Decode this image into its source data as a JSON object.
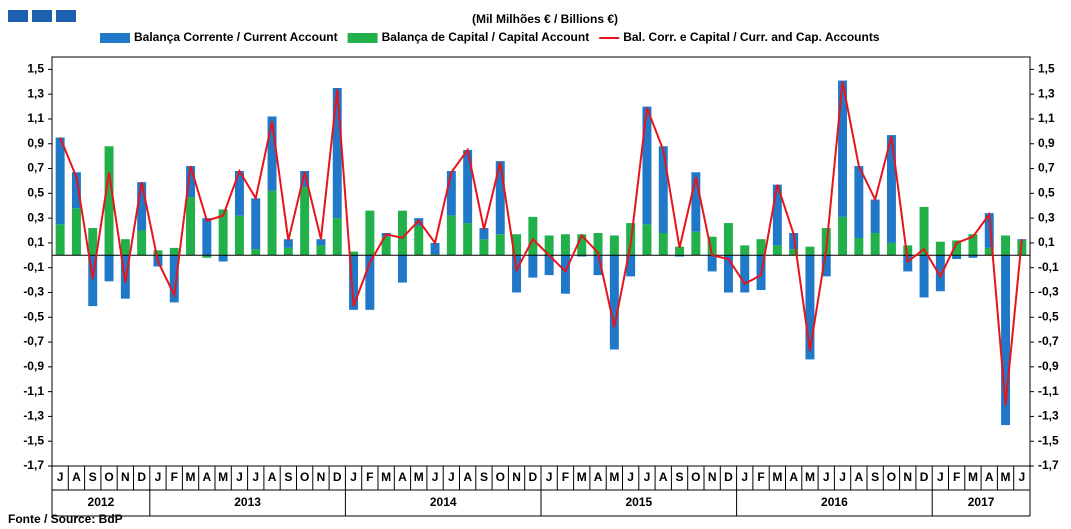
{
  "chart_data": {
    "type": "stacked-bar-line",
    "subtitle": "(Mil Milhões € / Billions €)",
    "source": "Fonte / Source: BdP",
    "categories": [
      "J",
      "A",
      "S",
      "O",
      "N",
      "D",
      "J",
      "F",
      "M",
      "A",
      "M",
      "J",
      "J",
      "A",
      "S",
      "O",
      "N",
      "D",
      "J",
      "F",
      "M",
      "A",
      "M",
      "J",
      "J",
      "A",
      "S",
      "O",
      "N",
      "D",
      "J",
      "F",
      "M",
      "A",
      "M",
      "J",
      "J",
      "A",
      "S",
      "O",
      "N",
      "D",
      "J",
      "F",
      "M",
      "A",
      "M",
      "J",
      "J",
      "A",
      "S",
      "O",
      "N",
      "D",
      "J",
      "F",
      "M",
      "A",
      "M",
      "J"
    ],
    "years": [
      "2012",
      "2013",
      "2014",
      "2015",
      "2016",
      "2017"
    ],
    "series": [
      {
        "name": "Balança Corrente / Current Account",
        "color": "#1f78c8",
        "kind": "bar",
        "values": [
          0.7,
          0.29,
          -0.41,
          -0.21,
          -0.35,
          0.39,
          -0.09,
          -0.38,
          0.25,
          0.3,
          -0.05,
          0.36,
          0.41,
          0.6,
          0.07,
          0.13,
          0.05,
          1.05,
          -0.44,
          -0.44,
          0.03,
          -0.22,
          0.06,
          0.09,
          0.36,
          0.59,
          0.09,
          0.59,
          -0.3,
          -0.18,
          -0.16,
          -0.31,
          -0.01,
          -0.16,
          -0.76,
          -0.17,
          0.95,
          0.7,
          -0.01,
          0.48,
          -0.13,
          -0.3,
          -0.3,
          -0.28,
          0.49,
          0.13,
          -0.84,
          -0.17,
          1.1,
          0.58,
          0.27,
          0.87,
          -0.13,
          -0.34,
          -0.29,
          -0.03,
          -0.02,
          0.28,
          -1.37,
          0.01
        ]
      },
      {
        "name": "Balança de Capital / Capital Account",
        "color": "#22b04b",
        "kind": "bar",
        "values": [
          0.25,
          0.38,
          0.22,
          0.88,
          0.13,
          0.2,
          0.04,
          0.06,
          0.47,
          -0.02,
          0.37,
          0.32,
          0.05,
          0.52,
          0.06,
          0.55,
          0.08,
          0.3,
          0.03,
          0.36,
          0.15,
          0.36,
          0.24,
          0.01,
          0.32,
          0.26,
          0.13,
          0.17,
          0.17,
          0.31,
          0.16,
          0.17,
          0.17,
          0.18,
          0.16,
          0.26,
          0.25,
          0.18,
          0.07,
          0.19,
          0.15,
          0.26,
          0.08,
          0.13,
          0.08,
          0.05,
          0.07,
          0.22,
          0.31,
          0.14,
          0.18,
          0.1,
          0.08,
          0.39,
          0.11,
          0.12,
          0.17,
          0.06,
          0.16,
          0.12
        ]
      },
      {
        "name": "Bal. Corr. e Capital / Curr. and Cap. Accounts",
        "color": "#e8141b",
        "kind": "line",
        "values": [
          0.95,
          0.63,
          -0.19,
          0.67,
          -0.22,
          0.59,
          -0.05,
          -0.32,
          0.72,
          0.28,
          0.32,
          0.68,
          0.46,
          1.08,
          0.12,
          0.67,
          0.13,
          1.34,
          -0.41,
          -0.06,
          0.17,
          0.14,
          0.28,
          0.1,
          0.67,
          0.85,
          0.21,
          0.75,
          -0.12,
          0.13,
          0.0,
          -0.13,
          0.16,
          0.02,
          -0.58,
          0.09,
          1.19,
          0.85,
          0.06,
          0.63,
          0.0,
          -0.03,
          -0.23,
          -0.16,
          0.57,
          0.17,
          -0.77,
          0.05,
          1.4,
          0.72,
          0.45,
          0.96,
          -0.05,
          0.05,
          -0.17,
          0.1,
          0.15,
          0.33,
          -1.21,
          0.13
        ]
      }
    ],
    "ylim": [
      -1.7,
      1.6
    ],
    "yticks": [
      {
        "value": -1.7,
        "label": "-1,7"
      },
      {
        "value": -1.5,
        "label": "-1,5"
      },
      {
        "value": -1.3,
        "label": "-1,3"
      },
      {
        "value": -1.1,
        "label": "-1,1"
      },
      {
        "value": -0.9,
        "label": "-0,9"
      },
      {
        "value": -0.7,
        "label": "-0,7"
      },
      {
        "value": -0.5,
        "label": "-0,5"
      },
      {
        "value": -0.3,
        "label": "-0,3"
      },
      {
        "value": -0.1,
        "label": "-0,1"
      },
      {
        "value": 0.1,
        "label": "0,1"
      },
      {
        "value": 0.3,
        "label": "0,3"
      },
      {
        "value": 0.5,
        "label": "0,5"
      },
      {
        "value": 0.7,
        "label": "0,7"
      },
      {
        "value": 0.9,
        "label": "0,9"
      },
      {
        "value": 1.1,
        "label": "1,1"
      },
      {
        "value": 1.3,
        "label": "1,3"
      },
      {
        "value": 1.5,
        "label": "1,5"
      }
    ]
  }
}
